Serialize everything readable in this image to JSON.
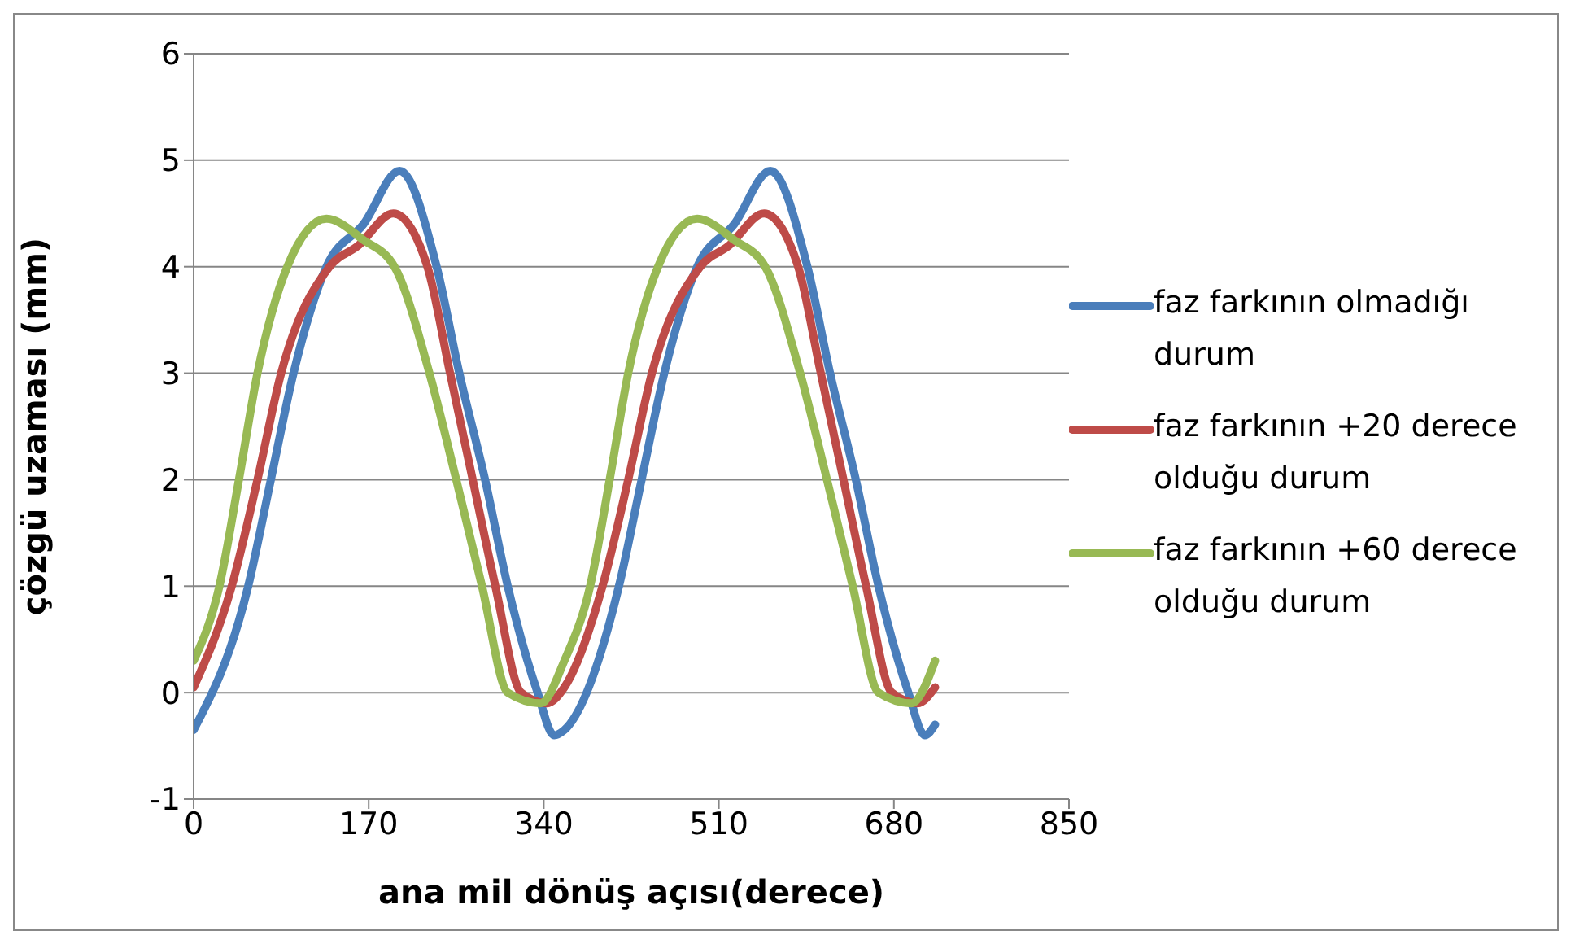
{
  "chart_data": {
    "type": "line",
    "xlabel": "ana mil dönüş açısı(derece)",
    "ylabel": "çözgü uzaması (mm)",
    "xlim": [
      0,
      850
    ],
    "xticks": [
      0,
      170,
      340,
      510,
      680,
      850
    ],
    "ylim": [
      -1,
      6
    ],
    "yticks": [
      -1,
      0,
      1,
      2,
      3,
      4,
      5,
      6
    ],
    "grid": "y",
    "legend": "right",
    "marker": "none",
    "line_style": "solid",
    "series": [
      {
        "name": "faz farkının olmadığı durum",
        "color": "#4a7ebb",
        "x": [
          0,
          53,
          75,
          97,
          129,
          165,
          200,
          236,
          258,
          283,
          305,
          334,
          350,
          360,
          413,
          435,
          457,
          489,
          525,
          560,
          596,
          618,
          643,
          665,
          694,
          710,
          720
        ],
        "values": [
          -0.35,
          1,
          2,
          3,
          4,
          4.4,
          4.9,
          4,
          3,
          2,
          1,
          0,
          -0.4,
          -0.35,
          1,
          2,
          3,
          4,
          4.4,
          4.9,
          4,
          3,
          2,
          1,
          0,
          -0.4,
          -0.3
        ]
      },
      {
        "name": "faz farkının +20 derece olduğu durum",
        "color": "#be4b48",
        "x": [
          0,
          37,
          62,
          85,
          132,
          160,
          194,
          227,
          249,
          271,
          293,
          318,
          343,
          360,
          397,
          422,
          445,
          492,
          520,
          554,
          587,
          609,
          631,
          653,
          678,
          703,
          720
        ],
        "values": [
          0.05,
          1,
          2,
          3,
          4,
          4.2,
          4.5,
          4,
          3,
          2,
          1,
          0,
          -0.1,
          0.05,
          1,
          2,
          3,
          4,
          4.2,
          4.5,
          4,
          3,
          2,
          1,
          0,
          -0.1,
          0.05
        ]
      },
      {
        "name": "faz farkının +60 derece olduğu durum",
        "color": "#98b954",
        "x": [
          0,
          25,
          44,
          62,
          91,
          129,
          165,
          195,
          229,
          255,
          280,
          305,
          337,
          360,
          385,
          404,
          422,
          451,
          489,
          525,
          555,
          589,
          615,
          640,
          665,
          697,
          720
        ],
        "values": [
          0.3,
          1,
          2,
          3,
          4,
          4.45,
          4.25,
          4,
          3,
          2,
          1,
          0,
          -0.1,
          0.3,
          1,
          2,
          3,
          4,
          4.45,
          4.25,
          4,
          3,
          2,
          1,
          0,
          -0.1,
          0.3
        ]
      }
    ]
  }
}
